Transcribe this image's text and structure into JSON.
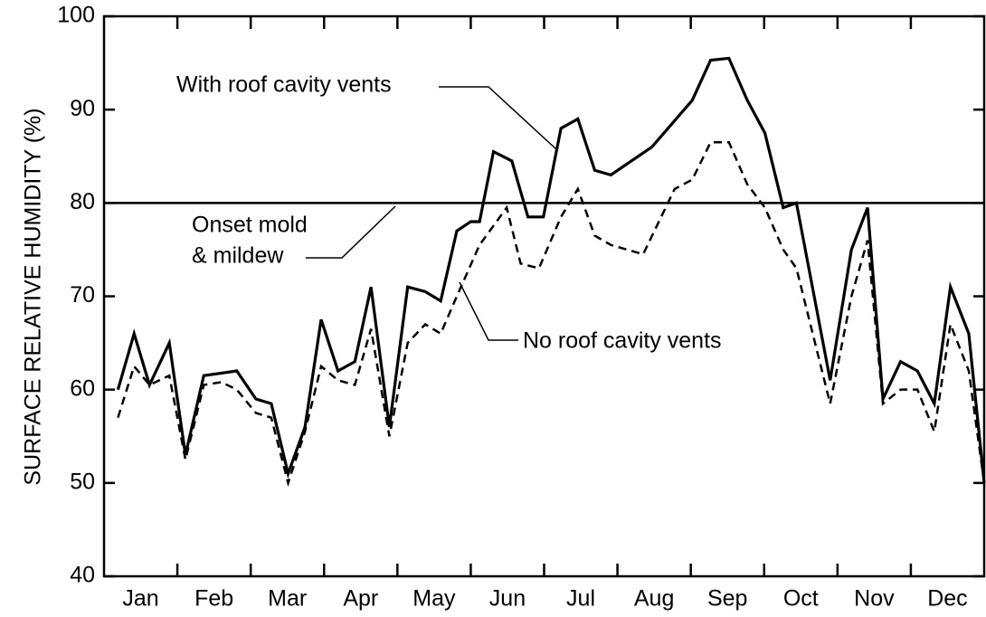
{
  "chart_data": {
    "type": "line",
    "ylabel": "SURFACE RELATIVE HUMIDITY (%)",
    "categories": [
      "Jan",
      "Feb",
      "Mar",
      "Apr",
      "May",
      "Jun",
      "Jul",
      "Aug",
      "Sep",
      "Oct",
      "Nov",
      "Dec"
    ],
    "xlim": [
      0,
      12
    ],
    "ylim": [
      40,
      100
    ],
    "yticks": [
      40,
      50,
      60,
      70,
      80,
      90,
      100
    ],
    "threshold": 80,
    "annotations": [
      "With roof cavity vents",
      "Onset mold",
      "& mildew",
      "No roof cavity vents"
    ],
    "series": [
      {
        "name": "With roof cavity vents",
        "color": "#000000",
        "dash": false,
        "x": [
          0.19,
          0.41,
          0.62,
          0.89,
          1.11,
          1.36,
          1.81,
          2.07,
          2.28,
          2.51,
          2.74,
          2.96,
          3.19,
          3.42,
          3.64,
          3.89,
          4.14,
          4.38,
          4.59,
          4.81,
          5.0,
          5.12,
          5.31,
          5.56,
          5.78,
          5.99,
          6.23,
          6.46,
          6.69,
          6.91,
          7.47,
          8.02,
          8.27,
          8.52,
          8.77,
          9.01,
          9.26,
          9.44,
          9.9,
          10.19,
          10.41,
          10.62,
          10.86,
          11.09,
          11.32,
          11.54,
          11.79,
          12.0
        ],
        "values": [
          60,
          66,
          60.5,
          65,
          53,
          61.5,
          62,
          59,
          58.5,
          51,
          56,
          67.5,
          62,
          63,
          71,
          56,
          71,
          70.5,
          69.5,
          77,
          78,
          78,
          85.5,
          84.5,
          78.5,
          78.5,
          88,
          89,
          83.5,
          83,
          86,
          91,
          95.3,
          95.5,
          91,
          87.5,
          79.5,
          80,
          61,
          75,
          79.5,
          59,
          63,
          62,
          58.5,
          71,
          66,
          50
        ]
      },
      {
        "name": "No roof cavity vents",
        "color": "#000000",
        "dash": true,
        "x": [
          0.19,
          0.41,
          0.62,
          0.89,
          1.11,
          1.36,
          1.6,
          1.81,
          2.07,
          2.28,
          2.51,
          2.74,
          2.96,
          3.19,
          3.42,
          3.64,
          3.89,
          4.14,
          4.38,
          4.59,
          4.81,
          5.12,
          5.49,
          5.68,
          5.93,
          6.23,
          6.46,
          6.69,
          6.91,
          7.35,
          7.78,
          8.02,
          8.27,
          8.52,
          8.77,
          9.01,
          9.26,
          9.44,
          9.9,
          10.19,
          10.41,
          10.62,
          10.86,
          11.09,
          11.32,
          11.54,
          11.79,
          12.0
        ],
        "values": [
          57,
          62.5,
          60.5,
          61.5,
          52.5,
          60.5,
          60.8,
          60,
          57.5,
          57,
          50,
          55.5,
          62.5,
          61,
          60.5,
          66.5,
          55,
          65,
          67,
          66,
          70,
          75.5,
          79.5,
          73.5,
          73,
          78.5,
          81.5,
          76.5,
          75.5,
          74.5,
          81.5,
          82.5,
          86.5,
          86.5,
          82,
          79.5,
          75,
          73,
          58.5,
          70,
          76,
          58.5,
          60,
          60,
          55.5,
          67,
          62,
          50
        ]
      }
    ]
  }
}
